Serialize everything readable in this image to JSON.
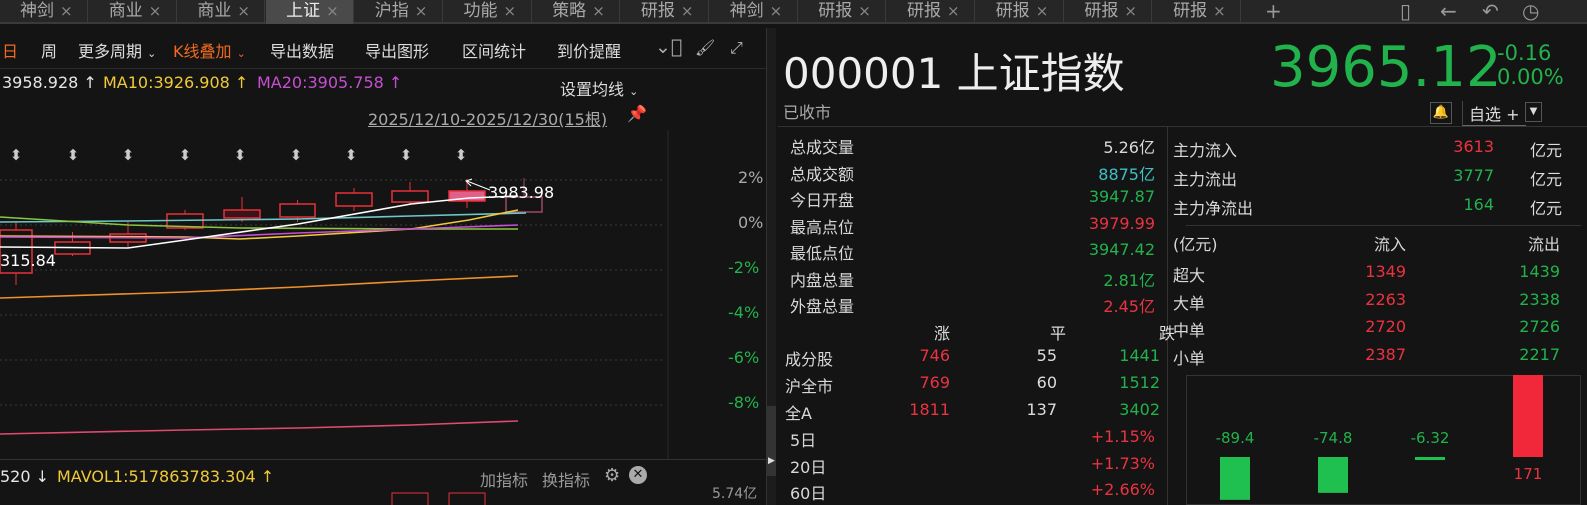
{
  "tabs": [
    {
      "label": "神剑"
    },
    {
      "label": "商业"
    },
    {
      "label": "商业"
    },
    {
      "label": "上证",
      "active": true
    },
    {
      "label": "沪指"
    },
    {
      "label": "功能"
    },
    {
      "label": "策略"
    },
    {
      "label": "研报"
    },
    {
      "label": "神剑"
    },
    {
      "label": "研报"
    },
    {
      "label": "研报"
    },
    {
      "label": "研报"
    },
    {
      "label": "研报"
    },
    {
      "label": "研报"
    }
  ],
  "tab_close": "×",
  "tab_add": "+",
  "window_icons": [
    "phone-icon",
    "back-arrow-icon",
    "undo-icon",
    "history-icon"
  ],
  "toolbar": {
    "day": "日",
    "week": "周",
    "more_periods": "更多周期",
    "kline_overlay": "K线叠加",
    "export_data": "导出数据",
    "export_image": "导出图形",
    "range_stats": "区间统计",
    "price_alert": "到价提醒"
  },
  "ma": {
    "ma5": "3958.928 ↑",
    "ma10": "MA10:3926.908 ↑",
    "ma20": "MA20:3905.758 ↑",
    "settings": "设置均线"
  },
  "date_range": "2025/12/10-2025/12/30(15根)",
  "chart": {
    "high_label": "3983.98",
    "low_label": "315.84",
    "axis": [
      "2%",
      "0%",
      "-2%",
      "-4%",
      "-6%",
      "-8%"
    ]
  },
  "volume": {
    "prefix": "520 ↓",
    "mavol": "MAVOL1:517863783.304 ↑",
    "add_indicator": "加指标",
    "switch_indicator": "换指标",
    "axis_top": "5.74亿"
  },
  "quote": {
    "code_name": "000001 上证指数",
    "price": "3965.12",
    "change": "-0.16",
    "change_pct": "0.00%",
    "status": "已收市",
    "watchlist": "自选 +"
  },
  "stats": [
    {
      "label": "总成交量",
      "value": "5.26亿",
      "color": "#d8d8d8"
    },
    {
      "label": "总成交额",
      "value": "8875亿",
      "color": "#3fc0c4"
    },
    {
      "label": "今日开盘",
      "value": "3947.87",
      "color": "#22b24c"
    },
    {
      "label": "最高点位",
      "value": "3979.99",
      "color": "#ea3340"
    },
    {
      "label": "最低点位",
      "value": "3947.42",
      "color": "#22b24c"
    },
    {
      "label": "内盘总量",
      "value": "2.81亿",
      "color": "#22b24c"
    },
    {
      "label": "外盘总量",
      "value": "2.45亿",
      "color": "#ea3340"
    }
  ],
  "breadth": {
    "headers": [
      "涨",
      "平",
      "跌"
    ],
    "rows": [
      {
        "label": "成分股",
        "up": "746",
        "flat": "55",
        "down": "1441"
      },
      {
        "label": "沪全市",
        "up": "769",
        "flat": "60",
        "down": "1512"
      },
      {
        "label": "全A",
        "up": "1811",
        "flat": "137",
        "down": "3402"
      }
    ]
  },
  "period_changes": [
    {
      "label": "5日",
      "value": "+1.15%"
    },
    {
      "label": "20日",
      "value": "+1.73%"
    },
    {
      "label": "60日",
      "value": "+2.66%"
    }
  ],
  "main_flow": [
    {
      "label": "主力流入",
      "value": "3613",
      "unit": "亿元",
      "color": "#ea3340"
    },
    {
      "label": "主力流出",
      "value": "3777",
      "unit": "亿元",
      "color": "#22b24c"
    },
    {
      "label": "主力净流出",
      "value": "164",
      "unit": "亿元",
      "color": "#22b24c"
    }
  ],
  "flow_table": {
    "headers": [
      "(亿元)",
      "流入",
      "流出"
    ],
    "rows": [
      {
        "label": "超大",
        "in": "1349",
        "out": "1439"
      },
      {
        "label": "大单",
        "in": "2263",
        "out": "2338"
      },
      {
        "label": "中单",
        "in": "2720",
        "out": "2726"
      },
      {
        "label": "小单",
        "in": "2387",
        "out": "2217"
      }
    ]
  },
  "net_bars": [
    {
      "value": -89.4,
      "label": "-89.4"
    },
    {
      "value": -74.8,
      "label": "-74.8"
    },
    {
      "value": -6.32,
      "label": "-6.32"
    },
    {
      "value": 171,
      "label": "171"
    }
  ],
  "colors": {
    "up": "#ea3340",
    "down": "#22b24c",
    "bg": "#141414"
  }
}
